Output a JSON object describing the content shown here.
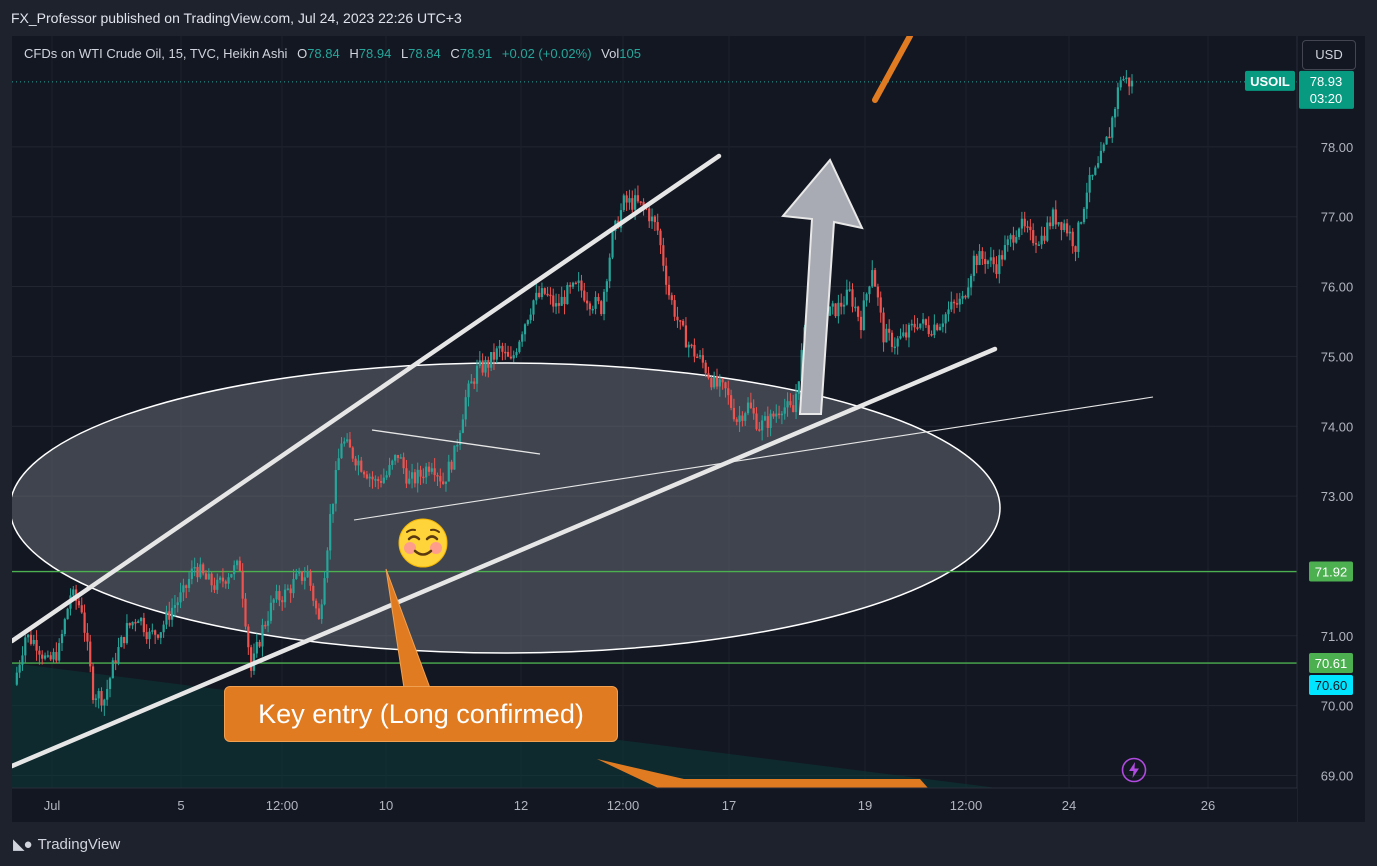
{
  "header": {
    "publisher": "FX_Professor published on TradingView.com, Jul 24, 2023 22:26 UTC+3"
  },
  "legend": {
    "symbol": "CFDs on WTI Crude Oil, 15, TVC, Heikin Ashi",
    "o_label": "O",
    "o": "78.84",
    "h_label": "H",
    "h": "78.94",
    "l_label": "L",
    "l": "78.84",
    "c_label": "C",
    "c": "78.91",
    "change": "+0.02 (+0.02%)",
    "vol_label": "Vol",
    "vol": "105"
  },
  "currency_button": "USD",
  "footer": {
    "brand": "TradingView"
  },
  "annotations": {
    "callout": "Key entry (Long confirmed)",
    "smiley_icon": "smiling-face-icon",
    "bolt_icon": "lightning-icon"
  },
  "colors": {
    "background": "#131722",
    "up_candle": "#26a69a",
    "down_candle": "#ef5350",
    "support_line": "#4caf50",
    "callout": "#e07b22",
    "price_tag": "#089981",
    "cyan_tag": "#00e5ff"
  },
  "chart_data": {
    "type": "line",
    "style": "Heikin Ashi candles",
    "x_ticks": [
      "Jul",
      "5",
      "12:00",
      "10",
      "12",
      "12:00",
      "17",
      "19",
      "12:00",
      "24",
      "26"
    ],
    "y_ticks": [
      "69.00",
      "70.00",
      "71.00",
      "73.00",
      "74.00",
      "75.00",
      "76.00",
      "77.00",
      "78.00"
    ],
    "ylim": [
      68.8,
      79.8
    ],
    "price_labels": [
      {
        "symbol": "USOIL",
        "price": "78.93",
        "countdown": "03:20",
        "value": 78.93
      },
      {
        "price": "71.92",
        "value": 71.92
      },
      {
        "price": "70.61",
        "value": 70.61
      },
      {
        "price": "70.60",
        "value": 70.6
      }
    ],
    "horizontal_lines": [
      71.92,
      70.61
    ],
    "series": [
      {
        "values": [
          [
            0,
            70.3
          ],
          [
            1,
            71.0
          ],
          [
            2,
            70.9
          ],
          [
            3,
            70.6
          ],
          [
            4,
            70.8
          ],
          [
            5,
            71.6
          ],
          [
            6,
            71.4
          ],
          [
            7,
            70.2
          ],
          [
            8,
            70.1
          ],
          [
            9,
            70.7
          ],
          [
            10,
            71.1
          ],
          [
            11,
            71.3
          ],
          [
            12,
            71.0
          ],
          [
            13,
            71.1
          ],
          [
            14,
            71.4
          ],
          [
            15,
            71.6
          ],
          [
            16,
            72.0
          ],
          [
            17,
            71.8
          ],
          [
            18,
            71.7
          ],
          [
            19,
            71.9
          ],
          [
            20,
            72.0
          ],
          [
            21,
            70.5
          ],
          [
            22,
            71.1
          ],
          [
            23,
            71.5
          ],
          [
            24,
            71.6
          ],
          [
            25,
            71.8
          ],
          [
            26,
            71.9
          ],
          [
            27,
            71.2
          ],
          [
            28,
            72.7
          ],
          [
            29,
            73.8
          ],
          [
            30,
            73.6
          ],
          [
            31,
            73.4
          ],
          [
            32,
            73.2
          ],
          [
            33,
            73.3
          ],
          [
            34,
            73.6
          ],
          [
            35,
            73.2
          ],
          [
            36,
            73.3
          ],
          [
            37,
            73.5
          ],
          [
            38,
            73.2
          ],
          [
            39,
            73.6
          ],
          [
            40,
            74.4
          ],
          [
            41,
            74.8
          ],
          [
            42,
            74.9
          ],
          [
            43,
            75.1
          ],
          [
            44,
            74.9
          ],
          [
            45,
            75.4
          ],
          [
            46,
            75.8
          ],
          [
            47,
            75.9
          ],
          [
            48,
            75.7
          ],
          [
            49,
            75.9
          ],
          [
            50,
            76.0
          ],
          [
            51,
            75.8
          ],
          [
            52,
            75.7
          ],
          [
            53,
            76.7
          ],
          [
            54,
            77.2
          ],
          [
            55,
            77.2
          ],
          [
            56,
            77.1
          ],
          [
            57,
            76.8
          ],
          [
            58,
            75.9
          ],
          [
            59,
            75.4
          ],
          [
            60,
            75.1
          ],
          [
            61,
            74.9
          ],
          [
            62,
            74.6
          ],
          [
            63,
            74.5
          ],
          [
            64,
            74.1
          ],
          [
            65,
            74.3
          ],
          [
            66,
            74.0
          ],
          [
            67,
            74.1
          ],
          [
            68,
            74.3
          ],
          [
            69,
            74.2
          ],
          [
            70,
            75.3
          ],
          [
            71,
            75.8
          ],
          [
            72,
            75.6
          ],
          [
            73,
            75.7
          ],
          [
            74,
            75.9
          ],
          [
            75,
            75.5
          ],
          [
            76,
            76.3
          ],
          [
            77,
            75.3
          ],
          [
            78,
            75.2
          ],
          [
            79,
            75.3
          ],
          [
            80,
            75.5
          ],
          [
            81,
            75.4
          ],
          [
            82,
            75.5
          ],
          [
            83,
            75.7
          ],
          [
            84,
            75.8
          ],
          [
            85,
            76.4
          ],
          [
            86,
            76.4
          ],
          [
            87,
            76.3
          ],
          [
            88,
            76.6
          ],
          [
            89,
            76.9
          ],
          [
            90,
            76.7
          ],
          [
            91,
            76.7
          ],
          [
            92,
            77.0
          ],
          [
            93,
            76.9
          ],
          [
            94,
            76.6
          ],
          [
            95,
            77.4
          ],
          [
            96,
            77.7
          ],
          [
            97,
            78.2
          ],
          [
            98,
            79.0
          ],
          [
            99,
            78.9
          ]
        ]
      }
    ]
  }
}
